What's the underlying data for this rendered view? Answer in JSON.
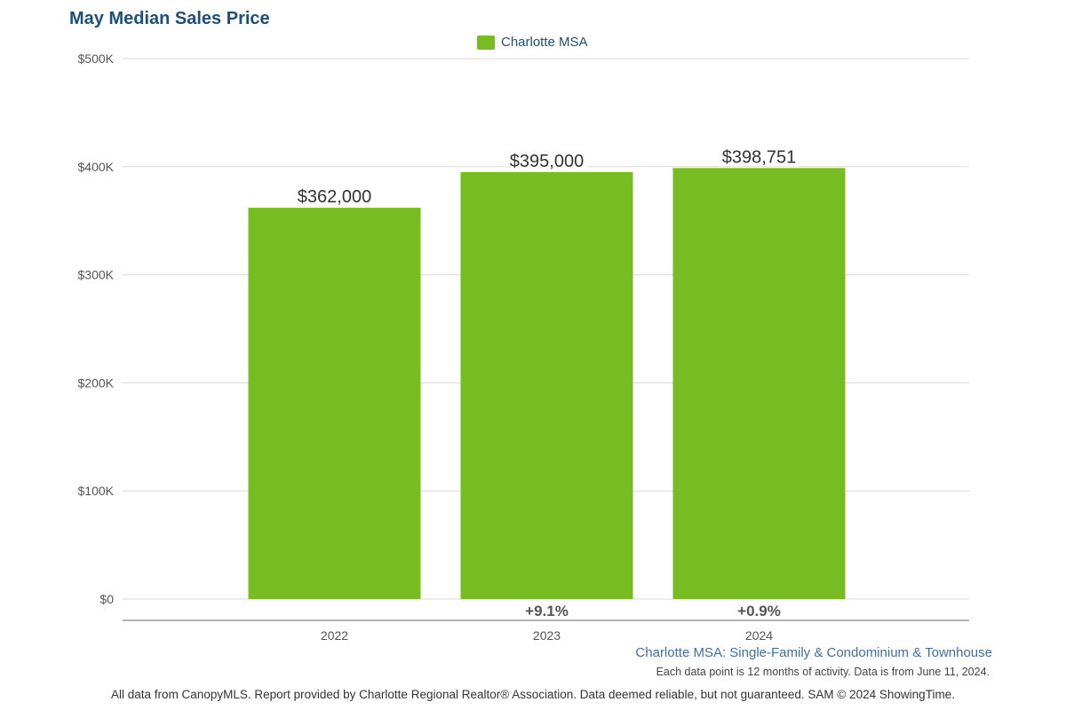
{
  "title": "May Median Sales Price",
  "legend_label": "Charlotte MSA",
  "chart_data": {
    "type": "bar",
    "categories": [
      "2022",
      "2023",
      "2024"
    ],
    "series": [
      {
        "name": "Charlotte MSA",
        "values": [
          362000,
          395000,
          398751
        ],
        "color": "#77bc21"
      }
    ],
    "value_labels": [
      "$362,000",
      "$395,000",
      "$398,751"
    ],
    "change_labels": [
      "",
      "+9.1%",
      "+0.9%"
    ],
    "ylim": [
      0,
      500000
    ],
    "yticks": [
      0,
      100000,
      200000,
      300000,
      400000,
      500000
    ],
    "ytick_labels": [
      "$0",
      "$100K",
      "$200K",
      "$300K",
      "$400K",
      "$500K"
    ],
    "grid": true,
    "legend_position": "top-center"
  },
  "subtitle": "Charlotte MSA: Single-Family & Condominium & Townhouse",
  "note": "Each data point is 12 months of activity. Data is from June 11, 2024.",
  "footer": "All data from CanopyMLS. Report provided by Charlotte Regional Realtor® Association. Data deemed reliable, but not guaranteed. SAM © 2024 ShowingTime.",
  "colors": {
    "bar": "#77bc21",
    "title": "#1f4e79",
    "grid": "#d9d9d9",
    "axis": "#888888"
  }
}
